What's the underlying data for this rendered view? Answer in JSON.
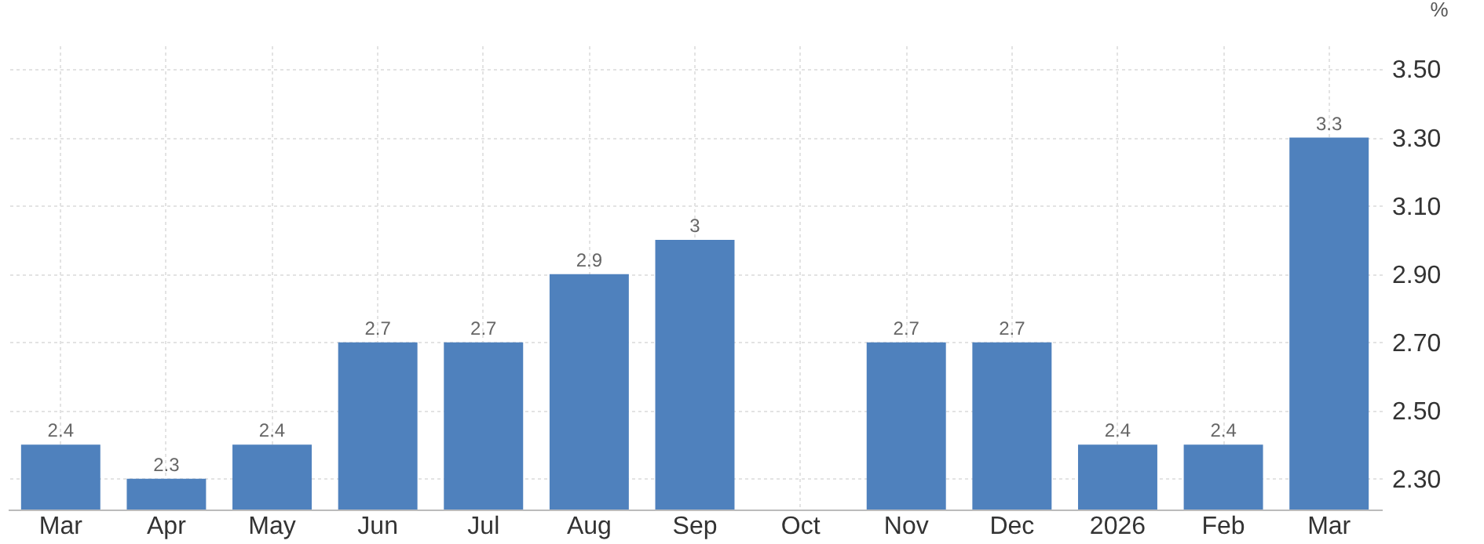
{
  "chart_data": {
    "type": "bar",
    "ylabel": "%",
    "categories": [
      "Mar",
      "Apr",
      "May",
      "Jun",
      "Jul",
      "Aug",
      "Sep",
      "Oct",
      "Nov",
      "Dec",
      "2026",
      "Feb",
      "Mar"
    ],
    "values": [
      2.4,
      2.3,
      2.4,
      2.7,
      2.7,
      2.9,
      3,
      null,
      2.7,
      2.7,
      2.4,
      2.4,
      3.3
    ],
    "color": "#4f81bd",
    "ylim": [
      2.21,
      3.57
    ],
    "yticks": [
      {
        "value": 2.3,
        "label": "2.30"
      },
      {
        "value": 2.5,
        "label": "2.50"
      },
      {
        "value": 2.7,
        "label": "2.70"
      },
      {
        "value": 2.9,
        "label": "2.90"
      },
      {
        "value": 3.1,
        "label": "3.10"
      },
      {
        "value": 3.3,
        "label": "3.30"
      },
      {
        "value": 3.5,
        "label": "3.50"
      }
    ],
    "data_labels": true,
    "grid": true
  }
}
